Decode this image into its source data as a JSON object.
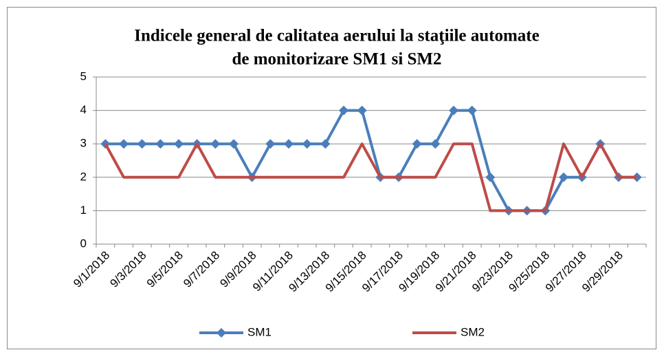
{
  "chart_data": {
    "type": "line",
    "title": [
      "Indicele general de calitatea aerului la staţiile automate",
      "de monitorizare SM1 si SM2"
    ],
    "categories": [
      "9/1/2018",
      null,
      "9/3/2018",
      null,
      "9/5/2018",
      null,
      "9/7/2018",
      null,
      "9/9/2018",
      null,
      "9/11/2018",
      null,
      "9/13/2018",
      null,
      "9/15/2018",
      null,
      "9/17/2018",
      null,
      "9/19/2018",
      null,
      "9/21/2018",
      null,
      "9/23/2018",
      null,
      "9/25/2018",
      null,
      "9/27/2018",
      null,
      "9/29/2018",
      null
    ],
    "series": [
      {
        "name": "SM1",
        "color": "#4a7ebb",
        "marker": "diamond",
        "values": [
          3,
          3,
          3,
          3,
          3,
          3,
          3,
          3,
          2,
          3,
          3,
          3,
          3,
          4,
          4,
          2,
          2,
          3,
          3,
          4,
          4,
          2,
          1,
          1,
          1,
          2,
          2,
          3,
          2,
          2
        ]
      },
      {
        "name": "SM2",
        "color": "#be4b48",
        "marker": "none",
        "values": [
          3,
          2,
          2,
          2,
          2,
          3,
          2,
          2,
          2,
          2,
          2,
          2,
          2,
          2,
          3,
          2,
          2,
          2,
          2,
          3,
          3,
          1,
          1,
          1,
          1,
          3,
          2,
          3,
          2,
          2
        ]
      }
    ],
    "ylim": [
      0,
      5
    ],
    "yticks": [
      0,
      1,
      2,
      3,
      4,
      5
    ],
    "grid": true,
    "legend": "bottom"
  }
}
